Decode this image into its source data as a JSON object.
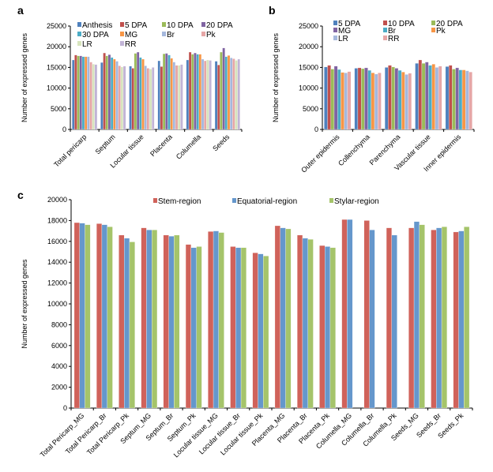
{
  "chart_data": [
    {
      "panel": "a",
      "type": "bar",
      "ylabel": "Number of expressed genes",
      "ylim": [
        0,
        25000
      ],
      "yticks": [
        0,
        5000,
        10000,
        15000,
        20000,
        25000
      ],
      "categories": [
        "Total pericarp",
        "Septum",
        "Locular tissue",
        "Placenta",
        "Columella",
        "Seeds"
      ],
      "series": [
        {
          "name": "Anthesis",
          "color": "#4f81bd",
          "values": [
            16800,
            16200,
            15300,
            16600,
            16800,
            16500
          ]
        },
        {
          "name": "5 DPA",
          "color": "#c0504d",
          "values": [
            18000,
            18500,
            14800,
            15200,
            18700,
            15600
          ]
        },
        {
          "name": "10 DPA",
          "color": "#9bbb59",
          "values": [
            17800,
            17800,
            18400,
            18300,
            18200,
            18700
          ]
        },
        {
          "name": "20 DPA",
          "color": "#8064a2",
          "values": [
            17800,
            18100,
            18700,
            18400,
            18500,
            19700
          ]
        },
        {
          "name": "30 DPA",
          "color": "#4bacc6",
          "values": [
            17600,
            17400,
            17400,
            18000,
            18200,
            17600
          ]
        },
        {
          "name": "MG",
          "color": "#f79646",
          "values": [
            17600,
            17000,
            17000,
            17200,
            18200,
            17900
          ]
        },
        {
          "name": "Br",
          "color": "#a5b8dd",
          "values": [
            17600,
            16500,
            15400,
            16300,
            17000,
            17300
          ]
        },
        {
          "name": "Pk",
          "color": "#e6a6a6",
          "values": [
            16300,
            15400,
            14800,
            15500,
            16600,
            17100
          ]
        },
        {
          "name": "LR",
          "color": "#d7e4bd",
          "values": [
            15800,
            15100,
            14600,
            15500,
            16800,
            16700
          ]
        },
        {
          "name": "RR",
          "color": "#c1b4d6",
          "values": [
            15700,
            15300,
            15000,
            15700,
            16700,
            17000
          ]
        }
      ]
    },
    {
      "panel": "b",
      "type": "bar",
      "ylabel": "Number of expressed genes",
      "ylim": [
        0,
        25000
      ],
      "yticks": [
        0,
        5000,
        10000,
        15000,
        20000,
        25000
      ],
      "categories": [
        "Outer epidermis",
        "Collenchyma",
        "Parenchyma",
        "Vascular tissue",
        "Inner epidermis"
      ],
      "series": [
        {
          "name": "5 DPA",
          "color": "#4f81bd",
          "values": [
            15100,
            14800,
            15000,
            16000,
            15200
          ]
        },
        {
          "name": "10 DPA",
          "color": "#c0504d",
          "values": [
            15500,
            14900,
            15500,
            16800,
            15500
          ]
        },
        {
          "name": "20 DPA",
          "color": "#9bbb59",
          "values": [
            14600,
            14700,
            15100,
            16000,
            14600
          ]
        },
        {
          "name": "MG",
          "color": "#8064a2",
          "values": [
            15300,
            14900,
            14800,
            16300,
            14900
          ]
        },
        {
          "name": "Br",
          "color": "#4bacc6",
          "values": [
            14500,
            14300,
            14300,
            15500,
            14400
          ]
        },
        {
          "name": "Pk",
          "color": "#f79646",
          "values": [
            13800,
            13700,
            13900,
            15800,
            14400
          ]
        },
        {
          "name": "LR",
          "color": "#a5b8dd",
          "values": [
            13700,
            13400,
            13300,
            15000,
            14200
          ]
        },
        {
          "name": "RR",
          "color": "#e6a6a6",
          "values": [
            14000,
            13700,
            13600,
            15300,
            13900
          ]
        }
      ]
    },
    {
      "panel": "c",
      "type": "bar",
      "ylabel": "Number of expressed genes",
      "ylim": [
        0,
        20000
      ],
      "yticks": [
        0,
        2000,
        4000,
        6000,
        8000,
        10000,
        12000,
        14000,
        16000,
        18000,
        20000
      ],
      "categories": [
        "Total Pericarp_MG",
        "Total Pericarp_Br",
        "Total Pericarp_Pk",
        "Septum_MG",
        "Septum_Br",
        "Septum_Pk",
        "Locular tissue_MG",
        "Locular tissue_Br",
        "Locular tissue_Pk",
        "Placenta_MG",
        "Placenta_Br",
        "Placenta_Pk",
        "Columella_MG",
        "Columella_Br",
        "Columella_Pk",
        "Seeds_MG",
        "Seeds_Br",
        "Seeds_Pk"
      ],
      "series": [
        {
          "name": "Stem-region",
          "color": "#d0625a",
          "values": [
            17800,
            17700,
            16600,
            17300,
            16600,
            15700,
            16950,
            15500,
            14900,
            17500,
            16600,
            15600,
            18100,
            18000,
            17300,
            17300,
            17100,
            16900
          ]
        },
        {
          "name": "Equatorial-region",
          "color": "#6597cc",
          "values": [
            17750,
            17600,
            16300,
            17100,
            16500,
            15400,
            17000,
            15400,
            14800,
            17300,
            16300,
            15500,
            18100,
            17100,
            16600,
            17900,
            17300,
            17000
          ]
        },
        {
          "name": "Stylar-region",
          "color": "#a5c46a",
          "values": [
            17600,
            17400,
            15950,
            17100,
            16600,
            15500,
            16850,
            15400,
            14600,
            17200,
            16200,
            15400,
            null,
            null,
            null,
            17600,
            17400,
            17400
          ]
        }
      ]
    }
  ]
}
